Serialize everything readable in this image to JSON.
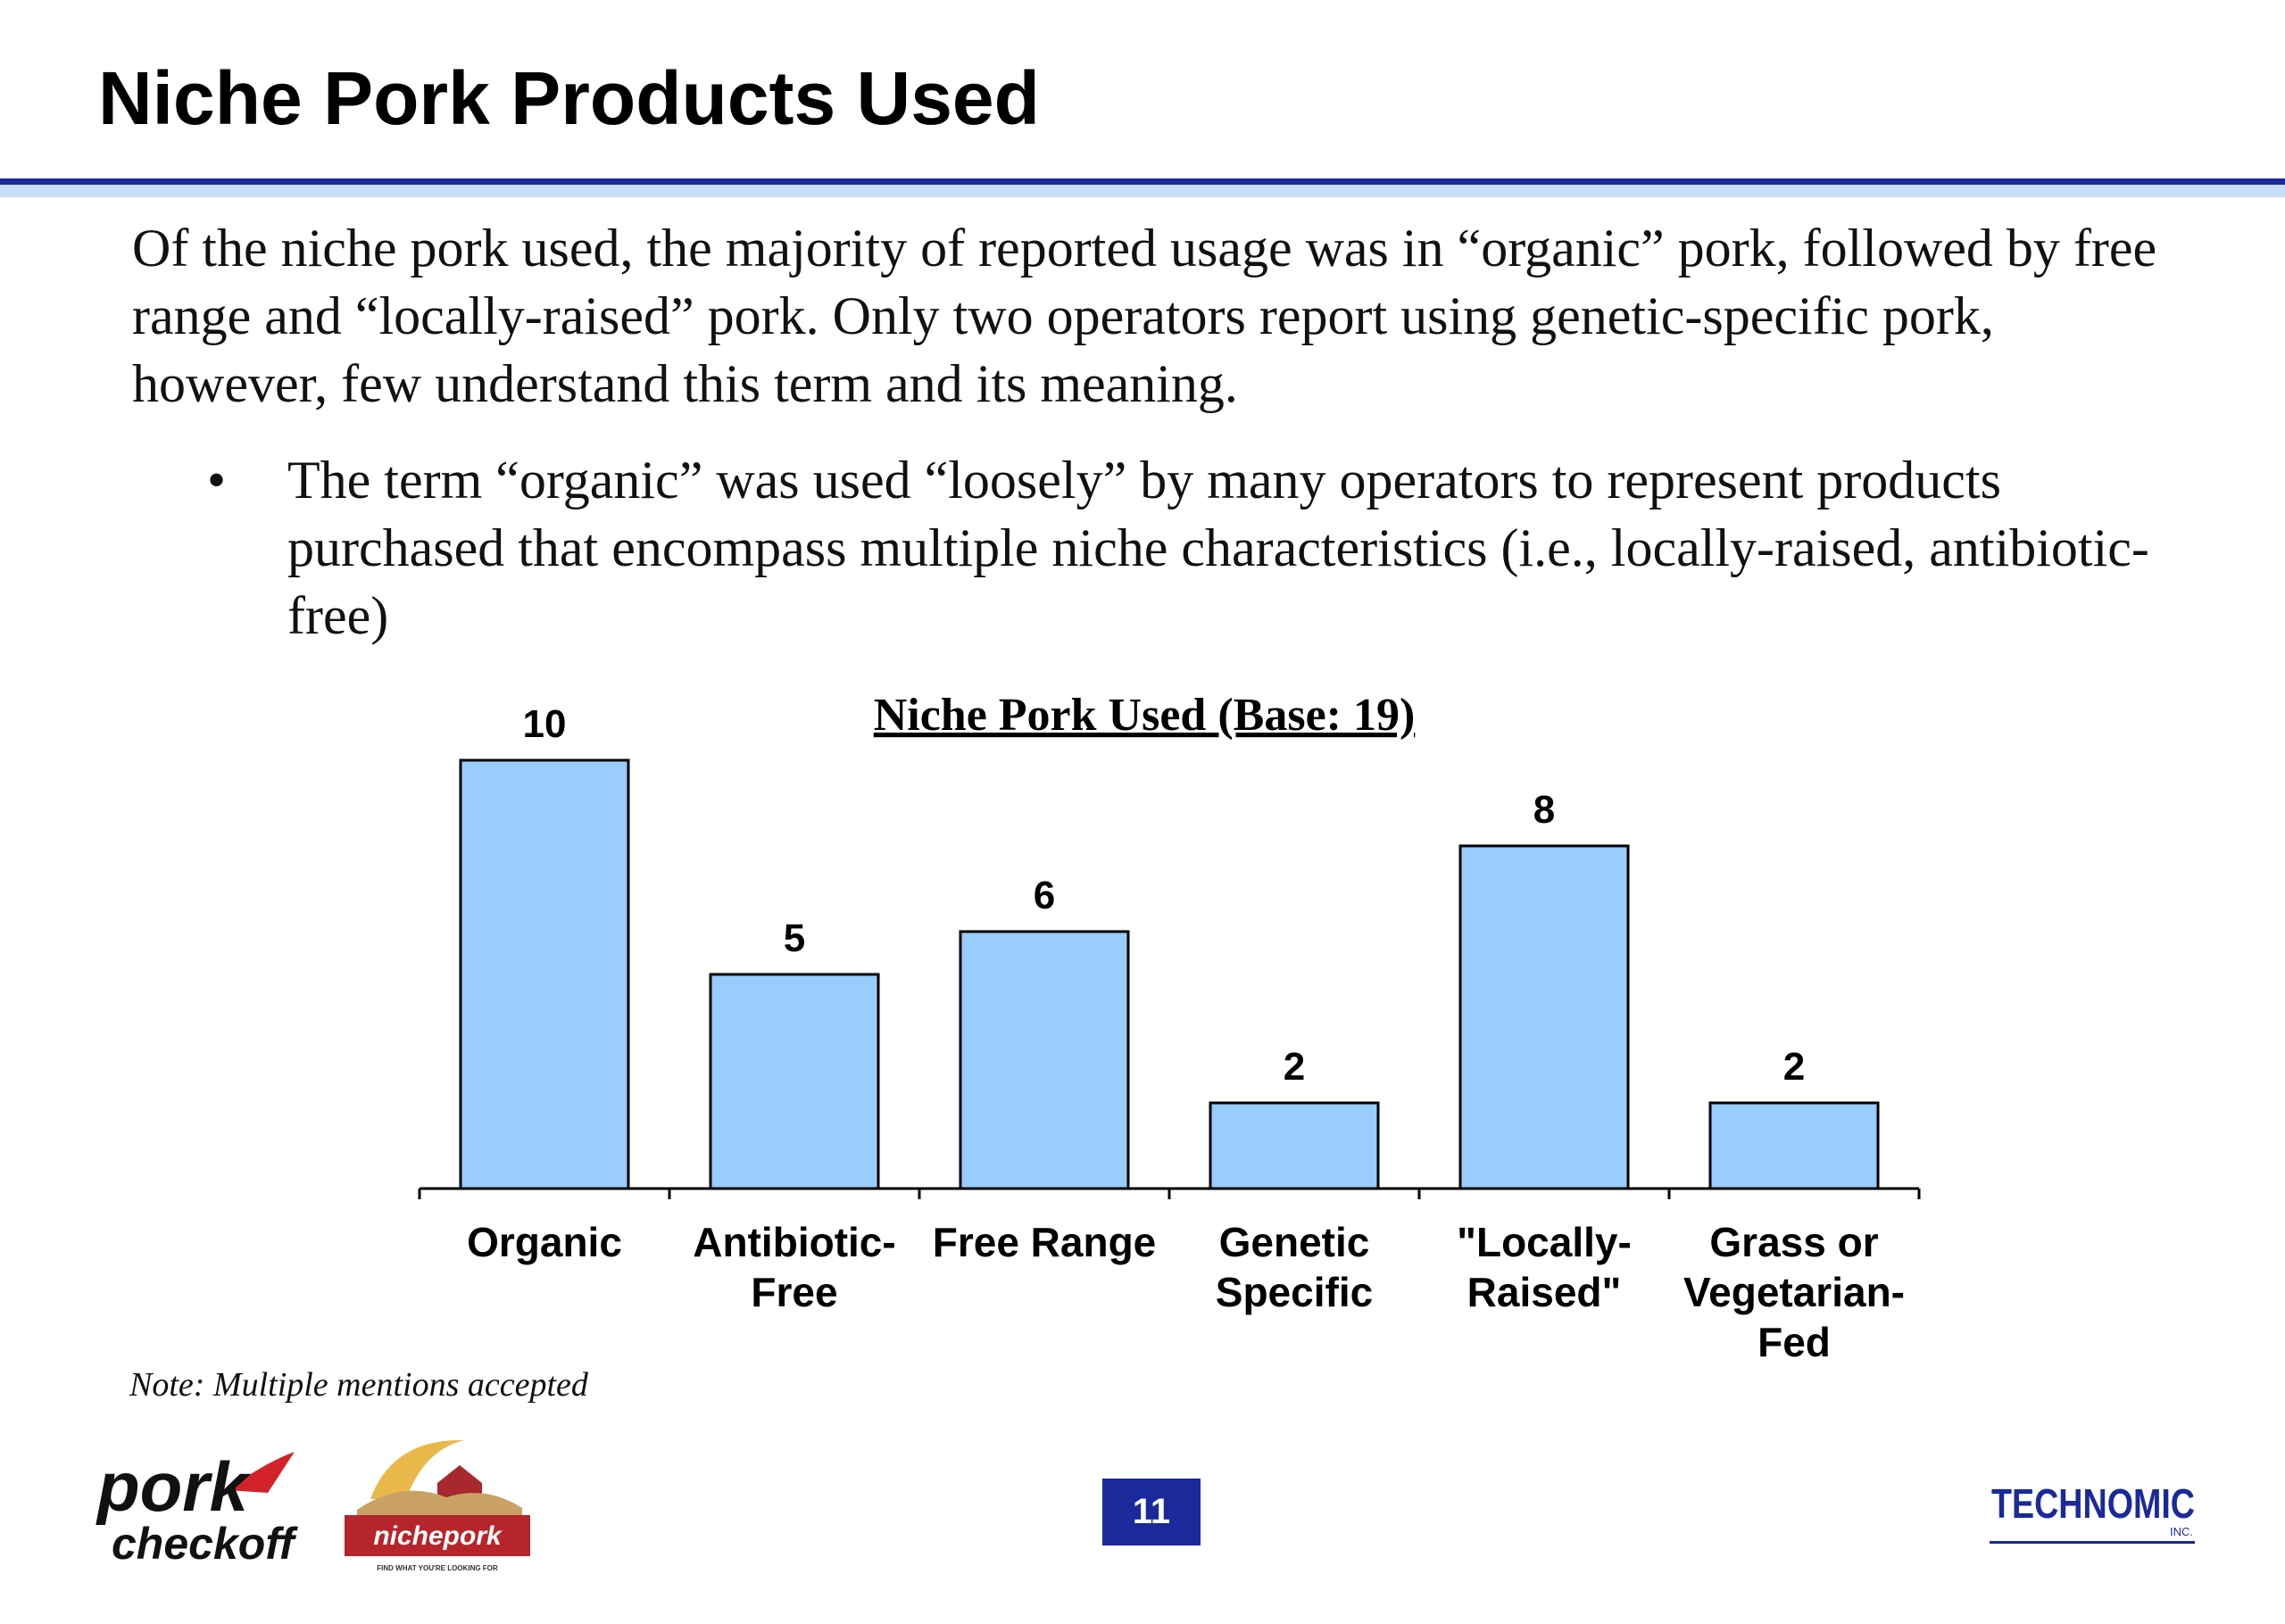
{
  "slide": {
    "title": "Niche Pork Products Used",
    "intro": "Of the niche pork used, the majority of reported usage was in “organic” pork, followed by free range and “locally-raised” pork. Only two operators report using genetic-specific pork, however, few understand this term and its meaning.",
    "bullets": [
      "The term “organic” was used “loosely” by many operators to represent products purchased that encompass multiple niche characteristics (i.e., locally-raised, antibiotic-free)"
    ],
    "note": "Note:  Multiple mentions accepted",
    "page_number": "11"
  },
  "logos": {
    "pork_top": "pork",
    "pork_bottom": "checkoff",
    "niche": "nichepork",
    "niche_tagline": "FIND WHAT YOU'RE LOOKING FOR",
    "technomic": "TECHNOMIC",
    "technomic_sub": "INC."
  },
  "colors": {
    "bar_fill": "#99ccff",
    "accent_navy": "#1a2a9a",
    "rule_light": "#c9dcf7",
    "niche_red": "#b5252b"
  },
  "chart_data": {
    "type": "bar",
    "title": "Niche Pork Used (Base: 19)",
    "categories": [
      [
        "Organic"
      ],
      [
        "Antibiotic-",
        "Free"
      ],
      [
        "Free Range"
      ],
      [
        "Genetic",
        "Specific"
      ],
      [
        "\"Locally-",
        "Raised\""
      ],
      [
        "Grass or",
        "Vegetarian-",
        "Fed"
      ]
    ],
    "values": [
      10,
      5,
      6,
      2,
      8,
      2
    ],
    "ylim": [
      0,
      10
    ],
    "grid": false,
    "legend": "none",
    "xlabel": "",
    "ylabel": ""
  }
}
